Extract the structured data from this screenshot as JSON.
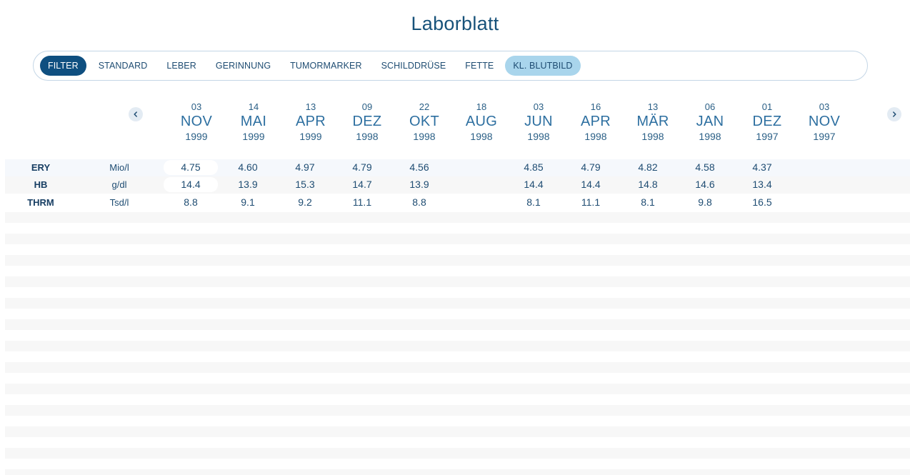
{
  "page_title": "Laborblatt",
  "filters": [
    {
      "label": "FILTER",
      "state": "filter"
    },
    {
      "label": "STANDARD",
      "state": ""
    },
    {
      "label": "LEBER",
      "state": ""
    },
    {
      "label": "GERINNUNG",
      "state": ""
    },
    {
      "label": "TUMORMARKER",
      "state": ""
    },
    {
      "label": "SCHILDDRÜSE",
      "state": ""
    },
    {
      "label": "FETTE",
      "state": ""
    },
    {
      "label": "KL. BLUTBILD",
      "state": "active"
    }
  ],
  "nav": {
    "prev_icon": "chevron-left-icon",
    "next_icon": "chevron-right-icon"
  },
  "dates": [
    {
      "day": "03",
      "month": "NOV",
      "year": "1999"
    },
    {
      "day": "14",
      "month": "MAI",
      "year": "1999"
    },
    {
      "day": "13",
      "month": "APR",
      "year": "1999"
    },
    {
      "day": "09",
      "month": "DEZ",
      "year": "1998"
    },
    {
      "day": "22",
      "month": "OKT",
      "year": "1998"
    },
    {
      "day": "18",
      "month": "AUG",
      "year": "1998"
    },
    {
      "day": "03",
      "month": "JUN",
      "year": "1998"
    },
    {
      "day": "16",
      "month": "APR",
      "year": "1998"
    },
    {
      "day": "13",
      "month": "MÄR",
      "year": "1998"
    },
    {
      "day": "06",
      "month": "JAN",
      "year": "1998"
    },
    {
      "day": "01",
      "month": "DEZ",
      "year": "1997"
    },
    {
      "day": "03",
      "month": "NOV",
      "year": "1997"
    }
  ],
  "rows": [
    {
      "label": "ERY",
      "unit": "Mio/l",
      "values": [
        "4.75",
        "4.60",
        "4.97",
        "4.79",
        "4.56",
        "",
        "4.85",
        "4.79",
        "4.82",
        "4.58",
        "4.37",
        ""
      ]
    },
    {
      "label": "HB",
      "unit": "g/dl",
      "values": [
        "14.4",
        "13.9",
        "15.3",
        "14.7",
        "13.9",
        "",
        "14.4",
        "14.4",
        "14.8",
        "14.6",
        "13.4",
        ""
      ]
    },
    {
      "label": "THRM",
      "unit": "Tsd/l",
      "values": [
        "8.8",
        "9.1",
        "9.2",
        "11.1",
        "8.8",
        "",
        "8.1",
        "11.1",
        "8.1",
        "9.8",
        "16.5",
        ""
      ]
    }
  ],
  "colors": {
    "primary": "#0f4f80",
    "active_chip": "#a9d5ec",
    "text": "#1e4c72",
    "stripe": "#f7f7f7"
  }
}
